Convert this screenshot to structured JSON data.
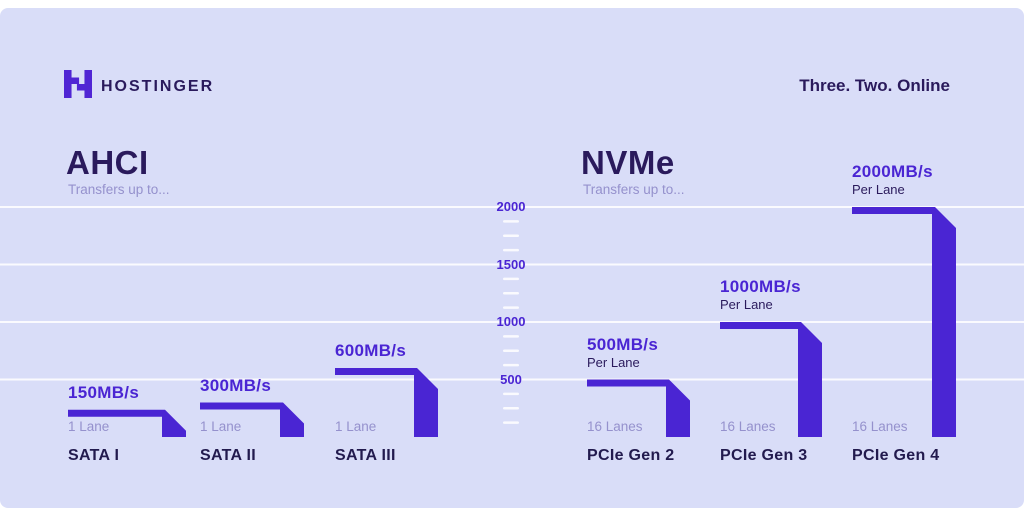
{
  "header": {
    "brand": "HOSTINGER",
    "tagline": "Three. Two. Online",
    "logo_icon": "hostinger-h-icon"
  },
  "sections": {
    "left": {
      "title": "AHCI",
      "subtitle": "Transfers up to..."
    },
    "right": {
      "title": "NVMe",
      "subtitle": "Transfers up to..."
    }
  },
  "colors": {
    "background": "#d9ddf8",
    "frame": "#ffffff",
    "purple": "#4a25d3",
    "dark": "#2a1a5c",
    "muted": "#9591cd",
    "category": "#221a4e",
    "gridline": "rgba(255,255,255,0.85)",
    "logo": "#5025d4"
  },
  "chart_data": {
    "type": "bar",
    "title": "AHCI vs NVMe transfer speeds",
    "ylabel": "MB/s",
    "ylim": [
      0,
      2000
    ],
    "yticks": [
      2000,
      1500,
      1000,
      500
    ],
    "grid": true,
    "groups": [
      "AHCI",
      "NVMe"
    ],
    "series": [
      {
        "group": "AHCI",
        "category": "SATA I",
        "value": 150,
        "value_label": "150MB/s",
        "lane_label": "1 Lane"
      },
      {
        "group": "AHCI",
        "category": "SATA II",
        "value": 300,
        "value_label": "300MB/s",
        "lane_label": "1 Lane"
      },
      {
        "group": "AHCI",
        "category": "SATA III",
        "value": 600,
        "value_label": "600MB/s",
        "lane_label": "1 Lane"
      },
      {
        "group": "NVMe",
        "category": "PCIe Gen 2",
        "value": 500,
        "value_label": "500MB/s",
        "per_label": "Per Lane",
        "lane_label": "16 Lanes"
      },
      {
        "group": "NVMe",
        "category": "PCIe Gen 3",
        "value": 1000,
        "value_label": "1000MB/s",
        "per_label": "Per Lane",
        "lane_label": "16 Lanes"
      },
      {
        "group": "NVMe",
        "category": "PCIe Gen 4",
        "value": 2000,
        "value_label": "2000MB/s",
        "per_label": "Per Lane",
        "lane_label": "16 Lanes"
      }
    ]
  }
}
